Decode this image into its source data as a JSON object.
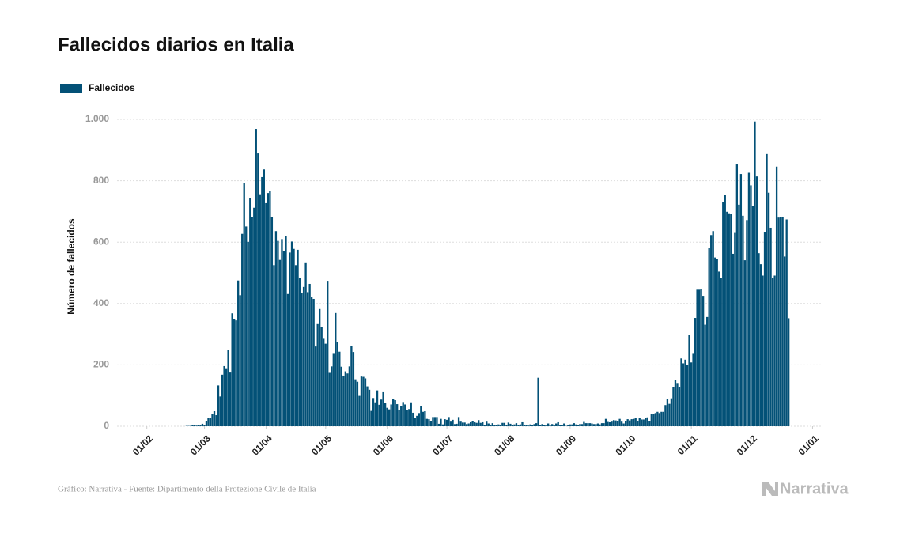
{
  "chart_data": {
    "type": "bar",
    "title": "Fallecidos diarios en Italia",
    "y_label": "Número de fallecidos",
    "source": "Gráfico: Narrativa - Fuente: Dipartimento della Protezione Civile de Italia",
    "brand": "Narrativa",
    "series": [
      {
        "name": "Fallecidos",
        "color": "#035177",
        "values": [
          1,
          1,
          1,
          4,
          3,
          2,
          5,
          4,
          8,
          5,
          18,
          27,
          28,
          41,
          49,
          36,
          133,
          97,
          168,
          196,
          189,
          250,
          175,
          368,
          349,
          345,
          475,
          427,
          627,
          793,
          651,
          601,
          743,
          683,
          712,
          969,
          889,
          756,
          812,
          837,
          727,
          760,
          766,
          681,
          525,
          636,
          604,
          542,
          610,
          570,
          619,
          431,
          566,
          602,
          578,
          525,
          575,
          482,
          433,
          454,
          534,
          437,
          464,
          420,
          415,
          260,
          333,
          382,
          323,
          285,
          269,
          474,
          174,
          195,
          236,
          369,
          274,
          243,
          194,
          165,
          179,
          172,
          195,
          262,
          242,
          153,
          145,
          99,
          162,
          161,
          156,
          130,
          119,
          50,
          92,
          78,
          117,
          70,
          87,
          111,
          75,
          60,
          55,
          71,
          88,
          85,
          72,
          53,
          65,
          79,
          71,
          53,
          56,
          78,
          44,
          26,
          34,
          43,
          66,
          47,
          49,
          24,
          23,
          18,
          30,
          30,
          30,
          8,
          24,
          6,
          23,
          21,
          30,
          15,
          21,
          7,
          8,
          30,
          15,
          12,
          12,
          7,
          9,
          13,
          17,
          13,
          11,
          20,
          11,
          13,
          3,
          15,
          9,
          5,
          10,
          5,
          5,
          6,
          5,
          11,
          11,
          3,
          12,
          8,
          5,
          6,
          10,
          5,
          6,
          13,
          3,
          4,
          2,
          6,
          3,
          7,
          10,
          158,
          4,
          7,
          3,
          5,
          9,
          2,
          7,
          4,
          9,
          13,
          5,
          4,
          9,
          1,
          4,
          6,
          6,
          10,
          6,
          5,
          7,
          7,
          14,
          10,
          10,
          10,
          9,
          7,
          7,
          9,
          6,
          10,
          10,
          24,
          14,
          13,
          15,
          20,
          19,
          17,
          24,
          15,
          9,
          17,
          23,
          19,
          23,
          24,
          27,
          18,
          28,
          22,
          22,
          28,
          29,
          16,
          39,
          41,
          43,
          47,
          43,
          47,
          47,
          69,
          89,
          73,
          91,
          127,
          151,
          141,
          128,
          221,
          205,
          217,
          199,
          297,
          208,
          236,
          353,
          445,
          445,
          446,
          425,
          331,
          356,
          580,
          623,
          636,
          550,
          546,
          504,
          484,
          731,
          753,
          699,
          694,
          692,
          562,
          630,
          853,
          722,
          822,
          686,
          541,
          672,
          826,
          785,
          719,
          993,
          814,
          564,
          528,
          491,
          634,
          887,
          761,
          647,
          484,
          491,
          846,
          680,
          683,
          683,
          553,
          674,
          352
        ]
      }
    ],
    "x": [
      "21/02",
      "22/02",
      "23/02",
      "24/02",
      "25/02",
      "26/02",
      "27/02",
      "28/02",
      "29/02",
      "01/03",
      "02/03",
      "03/03",
      "04/03",
      "05/03",
      "06/03",
      "07/03",
      "08/03",
      "09/03",
      "10/03",
      "11/03",
      "12/03",
      "13/03",
      "14/03",
      "15/03",
      "16/03",
      "17/03",
      "18/03",
      "19/03",
      "20/03",
      "21/03",
      "22/03",
      "23/03",
      "24/03",
      "25/03",
      "26/03",
      "27/03",
      "28/03",
      "29/03",
      "30/03",
      "31/03",
      "01/04",
      "02/04",
      "03/04",
      "04/04",
      "05/04",
      "06/04",
      "07/04",
      "08/04",
      "09/04",
      "10/04",
      "11/04",
      "12/04",
      "13/04",
      "14/04",
      "15/04",
      "16/04",
      "17/04",
      "18/04",
      "19/04",
      "20/04",
      "21/04",
      "22/04",
      "23/04",
      "24/04",
      "25/04",
      "26/04",
      "27/04",
      "28/04",
      "29/04",
      "30/04",
      "01/05",
      "02/05",
      "03/05",
      "04/05",
      "05/05",
      "06/05",
      "07/05",
      "08/05",
      "09/05",
      "10/05",
      "11/05",
      "12/05",
      "13/05",
      "14/05",
      "15/05",
      "16/05",
      "17/05",
      "18/05",
      "19/05",
      "20/05",
      "21/05",
      "22/05",
      "23/05",
      "24/05",
      "25/05",
      "26/05",
      "27/05",
      "28/05",
      "29/05",
      "30/05",
      "31/05",
      "01/06",
      "02/06",
      "03/06",
      "04/06",
      "05/06",
      "06/06",
      "07/06",
      "08/06",
      "09/06",
      "10/06",
      "11/06",
      "12/06",
      "13/06",
      "14/06",
      "15/06",
      "16/06",
      "17/06",
      "18/06",
      "19/06",
      "20/06",
      "21/06",
      "22/06",
      "23/06",
      "24/06",
      "25/06",
      "26/06",
      "27/06",
      "28/06",
      "29/06",
      "30/06",
      "01/07",
      "02/07",
      "03/07",
      "04/07",
      "05/07",
      "06/07",
      "07/07",
      "08/07",
      "09/07",
      "10/07",
      "11/07",
      "12/07",
      "13/07",
      "14/07",
      "15/07",
      "16/07",
      "17/07",
      "18/07",
      "19/07",
      "20/07",
      "21/07",
      "22/07",
      "23/07",
      "24/07",
      "25/07",
      "26/07",
      "27/07",
      "28/07",
      "29/07",
      "30/07",
      "31/07",
      "01/08",
      "02/08",
      "03/08",
      "04/08",
      "05/08",
      "06/08",
      "07/08",
      "08/08",
      "09/08",
      "10/08",
      "11/08",
      "12/08",
      "13/08",
      "14/08",
      "15/08",
      "16/08",
      "17/08",
      "18/08",
      "19/08",
      "20/08",
      "21/08",
      "22/08",
      "23/08",
      "24/08",
      "25/08",
      "26/08",
      "27/08",
      "28/08",
      "29/08",
      "30/08",
      "31/08",
      "01/09",
      "02/09",
      "03/09",
      "04/09",
      "05/09",
      "06/09",
      "07/09",
      "08/09",
      "09/09",
      "10/09",
      "11/09",
      "12/09",
      "13/09",
      "14/09",
      "15/09",
      "16/09",
      "17/09",
      "18/09",
      "19/09",
      "20/09",
      "21/09",
      "22/09",
      "23/09",
      "24/09",
      "25/09",
      "26/09",
      "27/09",
      "28/09",
      "29/09",
      "30/09",
      "01/10",
      "02/10",
      "03/10",
      "04/10",
      "05/10",
      "06/10",
      "07/10",
      "08/10",
      "09/10",
      "10/10",
      "11/10",
      "12/10",
      "13/10",
      "14/10",
      "15/10",
      "16/10",
      "17/10",
      "18/10",
      "19/10",
      "20/10",
      "21/10",
      "22/10",
      "23/10",
      "24/10",
      "25/10",
      "26/10",
      "27/10",
      "28/10",
      "29/10",
      "30/10",
      "31/10",
      "01/11",
      "02/11",
      "03/11",
      "04/11",
      "05/11",
      "06/11",
      "07/11",
      "08/11",
      "09/11",
      "10/11",
      "11/11",
      "12/11",
      "13/11",
      "14/11",
      "15/11",
      "16/11",
      "17/11",
      "18/11",
      "19/11",
      "20/11",
      "21/11",
      "22/11",
      "23/11",
      "24/11",
      "25/11",
      "26/11",
      "27/11",
      "28/11",
      "29/11",
      "30/11",
      "01/12",
      "02/12",
      "03/12",
      "04/12",
      "05/12",
      "06/12",
      "07/12",
      "08/12",
      "09/12",
      "10/12",
      "11/12",
      "12/12",
      "13/12",
      "14/12",
      "15/12",
      "16/12",
      "17/12",
      "18/12",
      "19/12",
      "20/12"
    ],
    "xlim": [
      "17/01",
      "06/01"
    ],
    "xticks": [
      "01/02",
      "01/03",
      "01/04",
      "01/05",
      "01/06",
      "01/07",
      "01/08",
      "01/09",
      "01/10",
      "01/11",
      "01/12",
      "01/01"
    ],
    "ylim": [
      0,
      1000
    ],
    "yticks": [
      0,
      200,
      400,
      600,
      800,
      {
        "value": 1000,
        "label": "1.000"
      }
    ],
    "grid": true,
    "legend": "top-left"
  }
}
